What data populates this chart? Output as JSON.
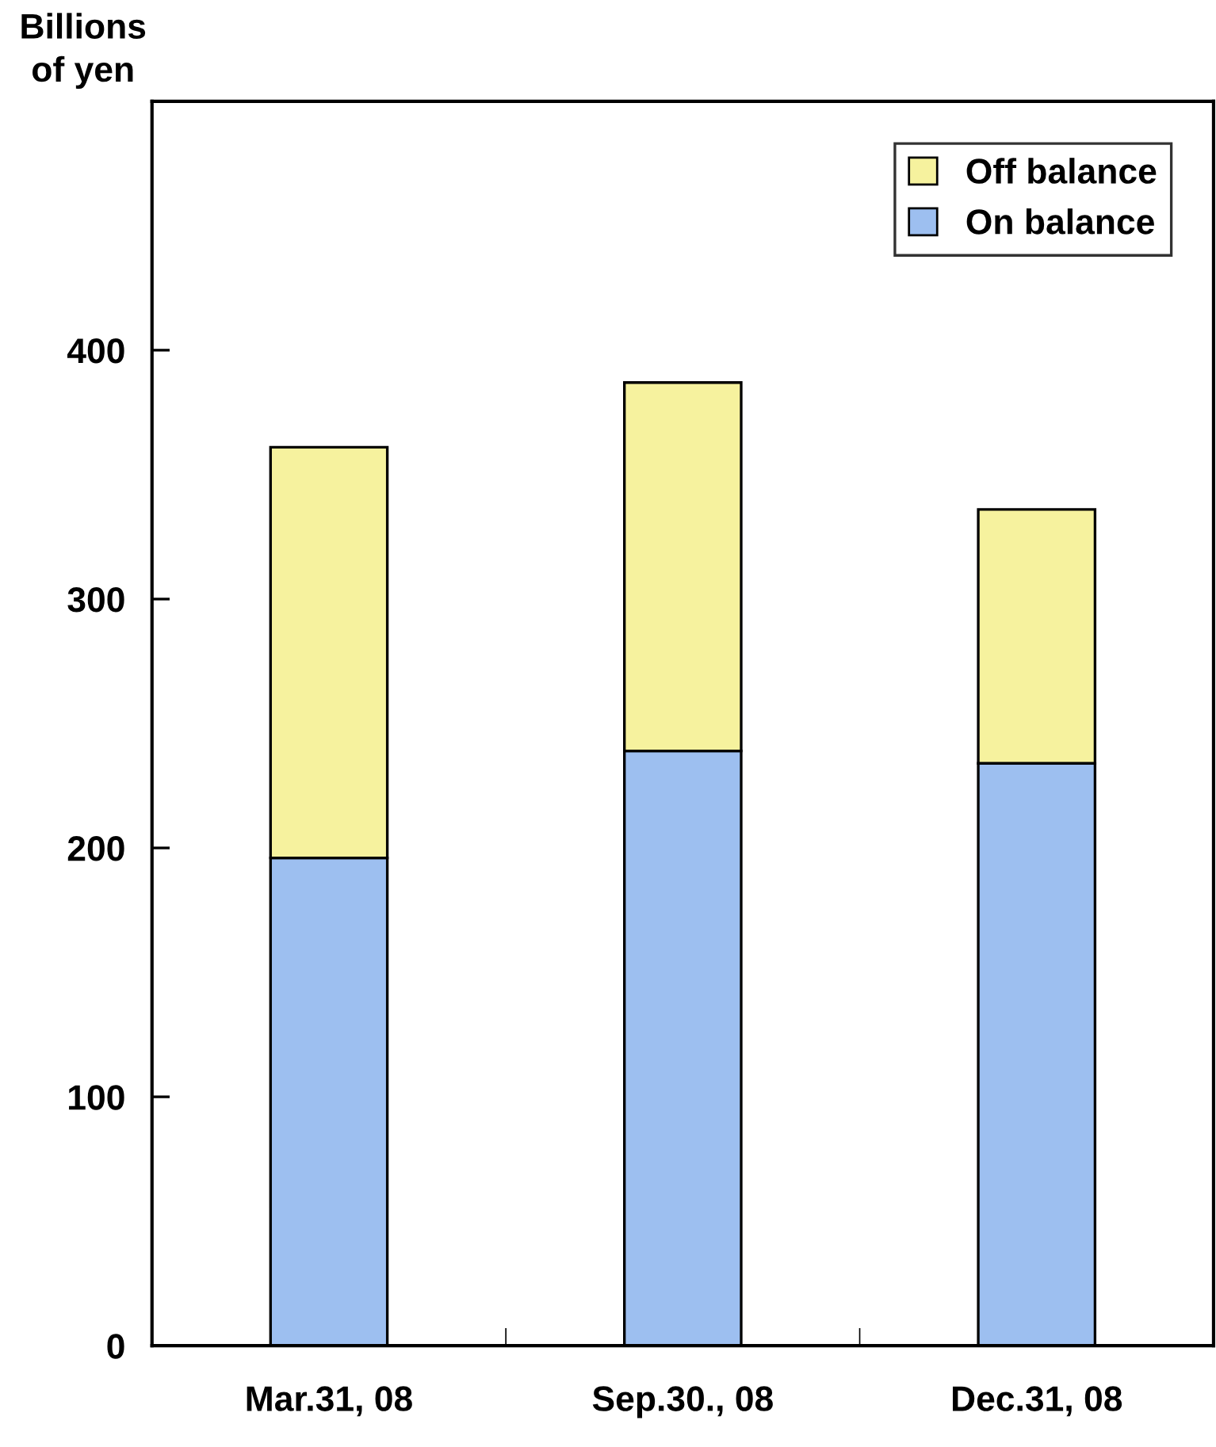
{
  "chart_data": {
    "type": "bar",
    "stacked": true,
    "ylabel": "Billions\nof yen",
    "categories": [
      "Mar.31, 08",
      "Sep.30., 08",
      "Dec.31, 08"
    ],
    "series": [
      {
        "name": "On balance",
        "color": "#9dbff0",
        "values": [
          196,
          239,
          234
        ]
      },
      {
        "name": "Off balance",
        "color": "#f6f29e",
        "values": [
          165,
          148,
          102
        ]
      }
    ],
    "ylim": [
      0,
      500
    ],
    "yticks": [
      0,
      100,
      200,
      300,
      400
    ],
    "grid": false,
    "legend": "top right"
  }
}
